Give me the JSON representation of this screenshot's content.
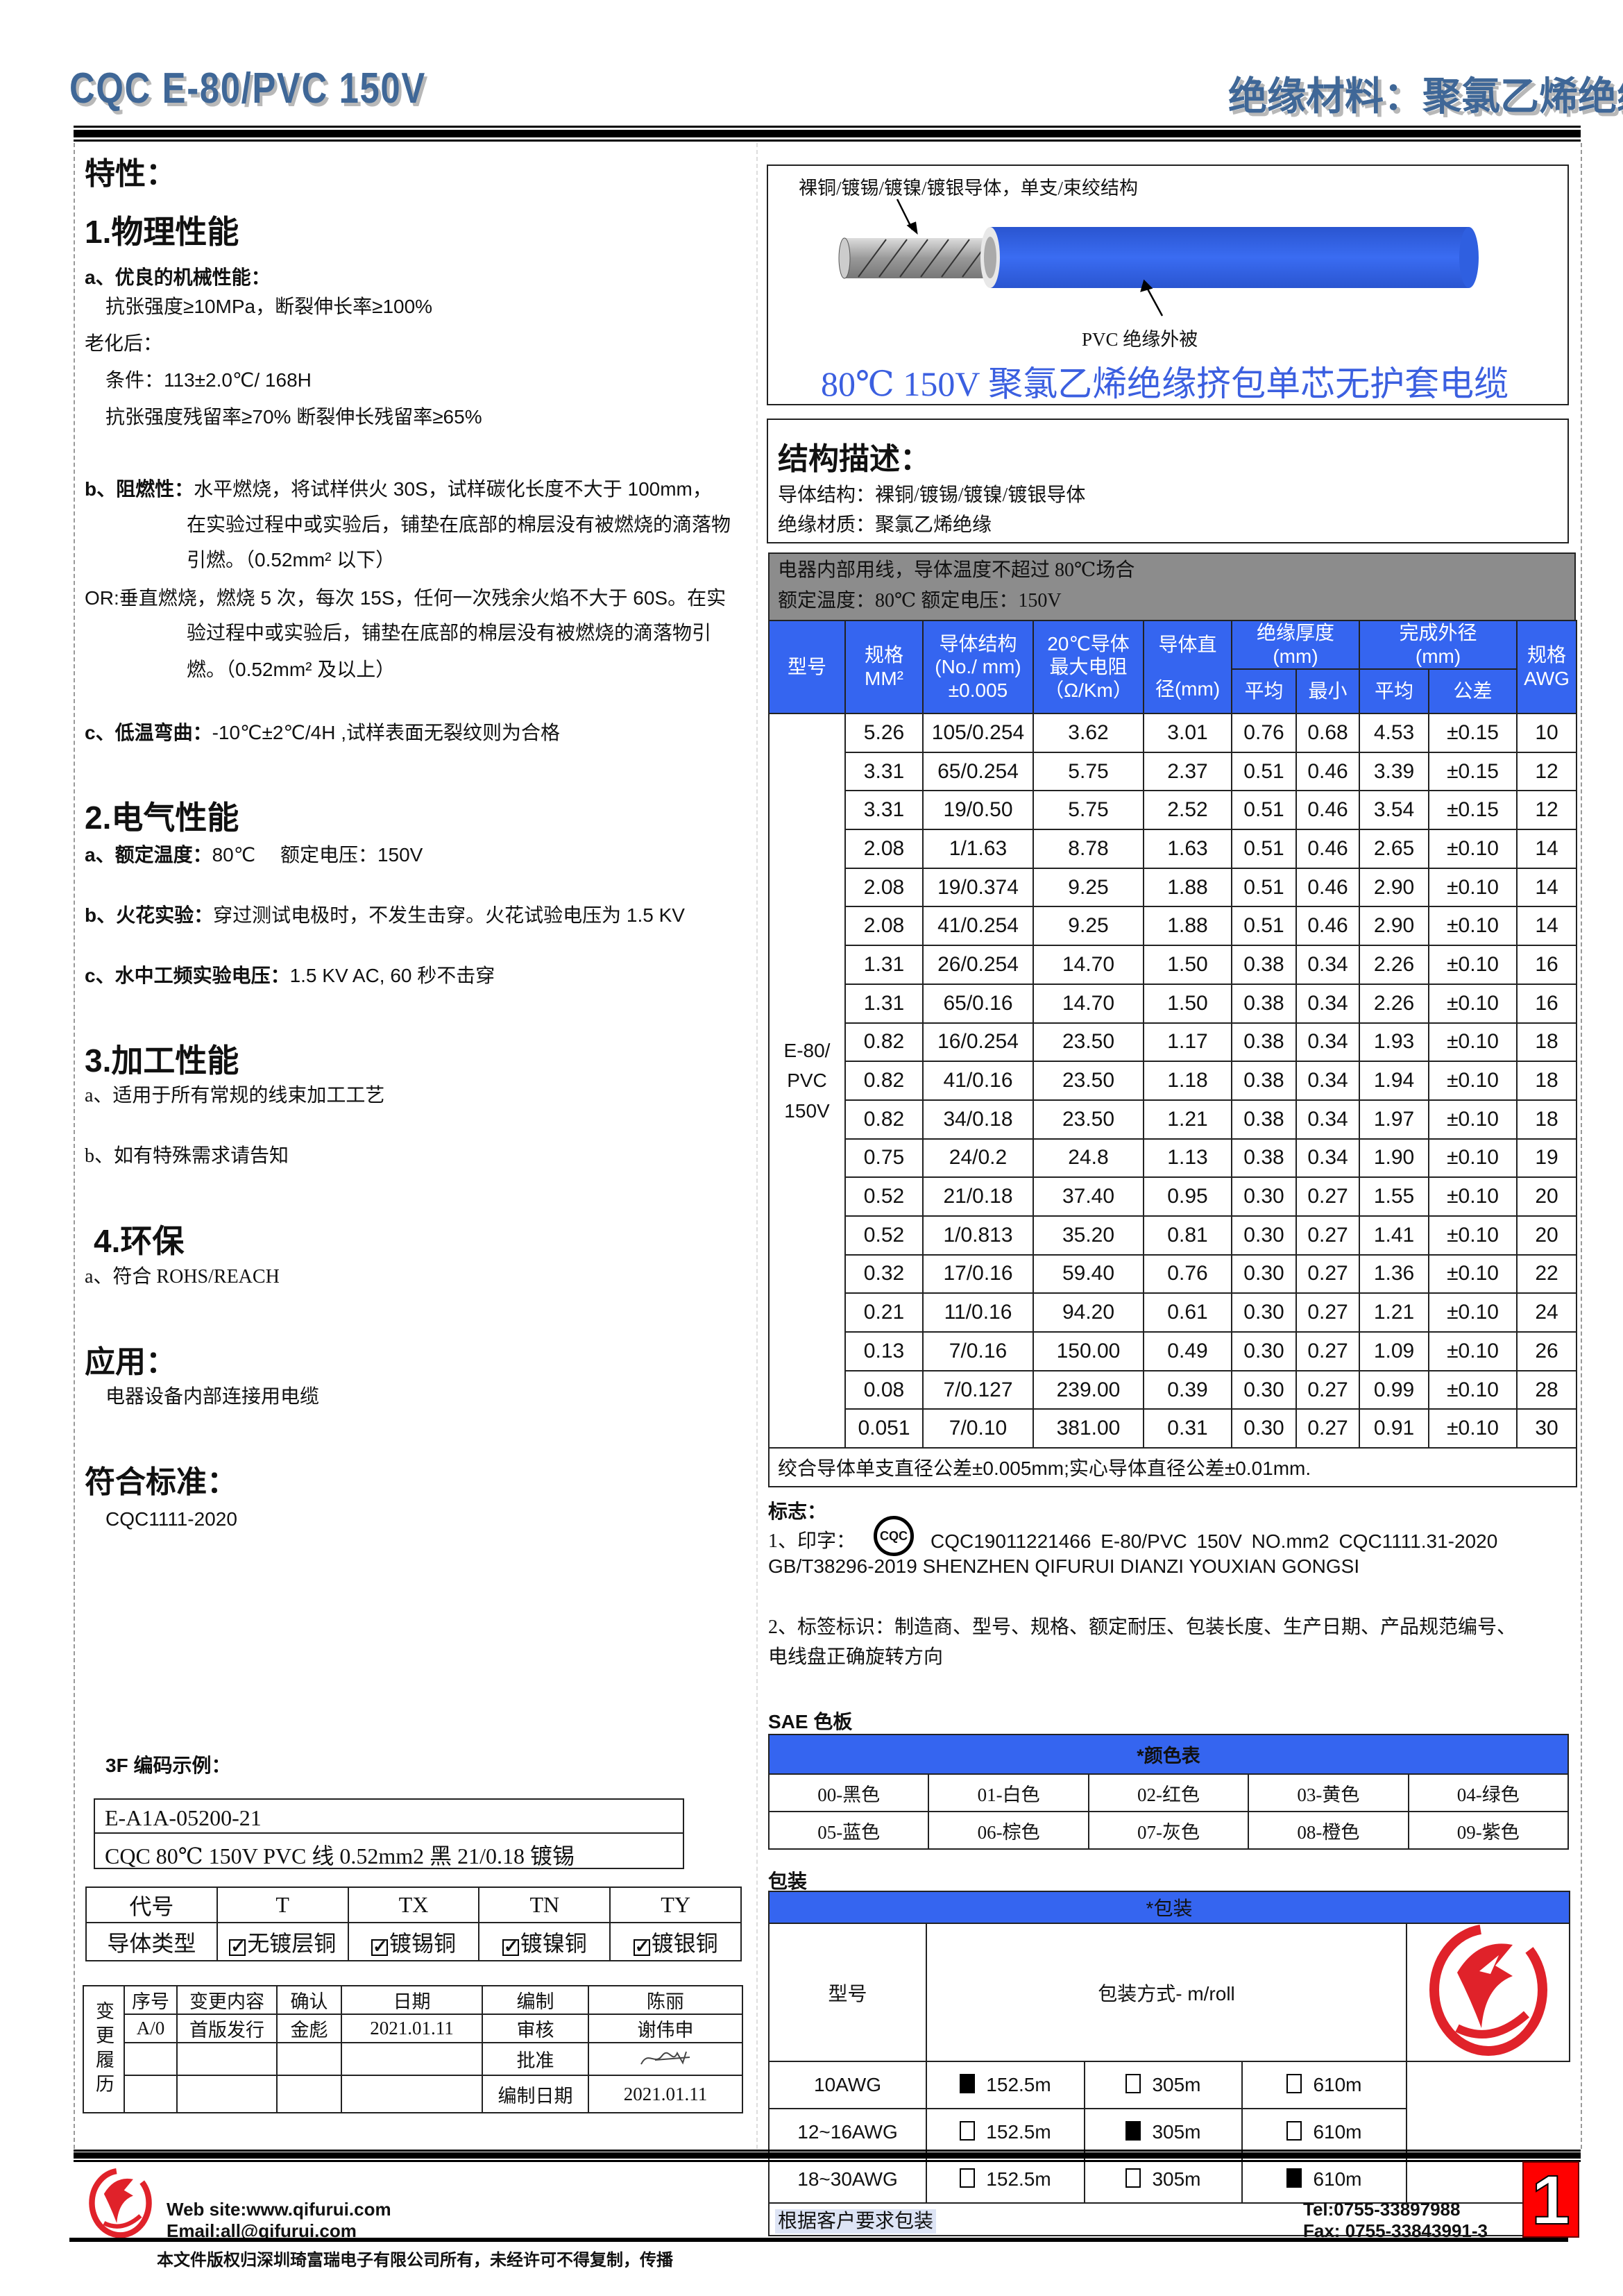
{
  "header": {
    "title": "CQC E-80/PVC 150V",
    "material": "绝缘材料：聚氯乙烯绝缘"
  },
  "left": {
    "features_heading": "特性：",
    "physical": {
      "heading": "1.物理性能",
      "a_label": "a、优良的机械性能：",
      "a_line1": "抗张强度≥10MPa，断裂伸长率≥100%",
      "aging": "老化后：",
      "condition": "条件：113±2.0℃/ 168H",
      "retention": "抗张强度残留率≥70% 断裂伸长残留率≥65%",
      "b_label": "b、阻燃性：",
      "b_line1": "水平燃烧，将试样供火 30S，试样碳化长度不大于 100mm，",
      "b_line2": "在实验过程中或实验后，铺垫在底部的棉层没有被燃烧的滴落物",
      "b_line3": "引燃。（0.52mm² 以下）",
      "or_line1": "OR:垂直燃烧，燃烧 5 次，每次 15S，任何一次残余火焰不大于 60S。在实",
      "or_line2": "验过程中或实验后，铺垫在底部的棉层没有被燃烧的滴落物引",
      "or_line3": "燃。（0.52mm² 及以上）",
      "c_label": "c、低温弯曲：",
      "c_text": "-10℃±2℃/4H ,试样表面无裂纹则为合格"
    },
    "electrical": {
      "heading": "2.电气性能",
      "a_label": "a、额定温度：",
      "a_text": "80℃　 额定电压：150V",
      "b_label": "b、火花实验：",
      "b_text": "穿过测试电极时，不发生击穿。火花试验电压为 1.5 KV",
      "c_label": "c、水中工频实验电压：",
      "c_text": "1.5 KV AC, 60 秒不击穿"
    },
    "processing": {
      "heading": "3.加工性能",
      "a": "a、适用于所有常规的线束加工工艺",
      "b": "b、如有特殊需求请告知"
    },
    "environment": {
      "heading": "4.环保",
      "a": "a、符合 ROHS/REACH"
    },
    "application": {
      "heading": "应用：",
      "text": "电器设备内部连接用电缆"
    },
    "standard": {
      "heading": "符合标准：",
      "text": "CQC1111-2020"
    },
    "code_example": {
      "heading": "3F 编码示例：",
      "code": "E-A1A-05200-21",
      "description": "CQC 80℃  150V PVC 线  0.52mm2  黑  21/0.18 镀锡"
    },
    "conductor_table": {
      "code_label": "代号",
      "type_label": "导体类型",
      "codes": [
        "T",
        "TX",
        "TN",
        "TY"
      ],
      "types": [
        "无镀层铜",
        "镀锡铜",
        "镀镍铜",
        "镀银铜"
      ]
    },
    "history": {
      "side_label": "变更履历",
      "headers": [
        "序号",
        "变更内容",
        "确认",
        "日期"
      ],
      "row": [
        "A/0",
        "首版发行",
        "金彪",
        "2021.01.11"
      ],
      "signoff": [
        {
          "label": "编制",
          "value": "陈丽"
        },
        {
          "label": "审核",
          "value": "谢伟申"
        },
        {
          "label": "批准",
          "value": ""
        },
        {
          "label": "编制日期",
          "value": "2021.01.11"
        }
      ]
    }
  },
  "right": {
    "illustration": {
      "conductor_label": "裸铜/镀锡/镀镍/镀银导体，单支/束绞结构",
      "insulation_label": "PVC  绝缘外被",
      "title": "80℃  150V 聚氯乙烯绝缘挤包单芯无护套电缆",
      "insulation_color": "#2f5fe0"
    },
    "structure": {
      "heading": "结构描述：",
      "conductor": "导体结构：裸铜/镀锡/镀镍/镀银导体",
      "insulation": "绝缘材质：聚氯乙烯绝缘"
    },
    "spec_table": {
      "note1": "电器内部用线，导体温度不超过  80℃场合",
      "note2": "额定温度：80℃  额定电压：150V",
      "headers": {
        "model": "型号",
        "size": "规格\nMM²",
        "structure": "导体结构\n(No./ mm)\n±0.005",
        "resistance": "20℃导体\n最大电阻\n（Ω/Km）",
        "diameter_top": "导体直",
        "diameter_bottom": "径(mm)",
        "insulation": "绝缘厚度\n(mm)",
        "outer": "完成外径\n(mm)",
        "awg": "规格\nAWG",
        "avg": "平均",
        "min": "最小",
        "avg2": "平均",
        "tol": "公差"
      },
      "model": "E-80/\nPVC\n150V",
      "rows": [
        [
          "5.26",
          "105/0.254",
          "3.62",
          "3.01",
          "0.76",
          "0.68",
          "4.53",
          "±0.15",
          "10"
        ],
        [
          "3.31",
          "65/0.254",
          "5.75",
          "2.37",
          "0.51",
          "0.46",
          "3.39",
          "±0.15",
          "12"
        ],
        [
          "3.31",
          "19/0.50",
          "5.75",
          "2.52",
          "0.51",
          "0.46",
          "3.54",
          "±0.15",
          "12"
        ],
        [
          "2.08",
          "1/1.63",
          "8.78",
          "1.63",
          "0.51",
          "0.46",
          "2.65",
          "±0.10",
          "14"
        ],
        [
          "2.08",
          "19/0.374",
          "9.25",
          "1.88",
          "0.51",
          "0.46",
          "2.90",
          "±0.10",
          "14"
        ],
        [
          "2.08",
          "41/0.254",
          "9.25",
          "1.88",
          "0.51",
          "0.46",
          "2.90",
          "±0.10",
          "14"
        ],
        [
          "1.31",
          "26/0.254",
          "14.70",
          "1.50",
          "0.38",
          "0.34",
          "2.26",
          "±0.10",
          "16"
        ],
        [
          "1.31",
          "65/0.16",
          "14.70",
          "1.50",
          "0.38",
          "0.34",
          "2.26",
          "±0.10",
          "16"
        ],
        [
          "0.82",
          "16/0.254",
          "23.50",
          "1.17",
          "0.38",
          "0.34",
          "1.93",
          "±0.10",
          "18"
        ],
        [
          "0.82",
          "41/0.16",
          "23.50",
          "1.18",
          "0.38",
          "0.34",
          "1.94",
          "±0.10",
          "18"
        ],
        [
          "0.82",
          "34/0.18",
          "23.50",
          "1.21",
          "0.38",
          "0.34",
          "1.97",
          "±0.10",
          "18"
        ],
        [
          "0.75",
          "24/0.2",
          "24.8",
          "1.13",
          "0.38",
          "0.34",
          "1.90",
          "±0.10",
          "19"
        ],
        [
          "0.52",
          "21/0.18",
          "37.40",
          "0.95",
          "0.30",
          "0.27",
          "1.55",
          "±0.10",
          "20"
        ],
        [
          "0.52",
          "1/0.813",
          "35.20",
          "0.81",
          "0.30",
          "0.27",
          "1.41",
          "±0.10",
          "20"
        ],
        [
          "0.32",
          "17/0.16",
          "59.40",
          "0.76",
          "0.30",
          "0.27",
          "1.36",
          "±0.10",
          "22"
        ],
        [
          "0.21",
          "11/0.16",
          "94.20",
          "0.61",
          "0.30",
          "0.27",
          "1.21",
          "±0.10",
          "24"
        ],
        [
          "0.13",
          "7/0.16",
          "150.00",
          "0.49",
          "0.30",
          "0.27",
          "1.09",
          "±0.10",
          "26"
        ],
        [
          "0.08",
          "7/0.127",
          "239.00",
          "0.39",
          "0.30",
          "0.27",
          "0.99",
          "±0.10",
          "28"
        ],
        [
          "0.051",
          "7/0.10",
          "381.00",
          "0.31",
          "0.30",
          "0.27",
          "0.91",
          "±0.10",
          "30"
        ]
      ],
      "footnote": "绞合导体单支直径公差±0.005mm;实心导体直径公差±0.01mm."
    },
    "marking": {
      "heading": "标志：",
      "print_label": "1、印字：",
      "cqc_mark": "CQC",
      "print_text": "CQC19011221466   E-80/PVC   150V   NO.mm2   CQC1111.31-2020",
      "print_text2": "GB/T38296-2019 SHENZHEN QIFURUI DIANZI YOUXIAN GONGSI",
      "label_line1": "2、标签标识：制造商、型号、规格、额定耐压、包装长度、生产日期、产品规范编号、",
      "label_line2": "电线盘正确旋转方向"
    },
    "colors": {
      "heading": "SAE 色板",
      "table_title": "*颜色表",
      "items": [
        "00-黑色",
        "01-白色",
        "02-红色",
        "03-黄色",
        "04-绿色",
        "05-蓝色",
        "06-棕色",
        "07-灰色",
        "08-橙色",
        "09-紫色"
      ]
    },
    "packaging": {
      "heading": "包装",
      "table_title": "*包装",
      "model_label": "型号",
      "method_label": "包装方式- m/roll",
      "rows": [
        {
          "model": "10AWG",
          "options": [
            {
              "length": "152.5m",
              "checked": true
            },
            {
              "length": "305m",
              "checked": false
            },
            {
              "length": "610m",
              "checked": false
            }
          ]
        },
        {
          "model": "12~16AWG",
          "options": [
            {
              "length": "152.5m",
              "checked": false
            },
            {
              "length": "305m",
              "checked": true
            },
            {
              "length": "610m",
              "checked": false
            }
          ]
        },
        {
          "model": "18~30AWG",
          "options": [
            {
              "length": "152.5m",
              "checked": false
            },
            {
              "length": "305m",
              "checked": false
            },
            {
              "length": "610m",
              "checked": true
            }
          ]
        }
      ],
      "note": "根据客户要求包装"
    }
  },
  "footer": {
    "website": "Web site:www.qifurui.com",
    "email": "Email:all@qifurui.com",
    "tel": "Tel:0755-33897988",
    "fax": "Fax: 0755-33843991-3",
    "page_number": "1",
    "copyright": "本文件版权归深圳琦富瑞电子有限公司所有，未经许可不得复制，传播",
    "brand_color": "#e0222a"
  }
}
